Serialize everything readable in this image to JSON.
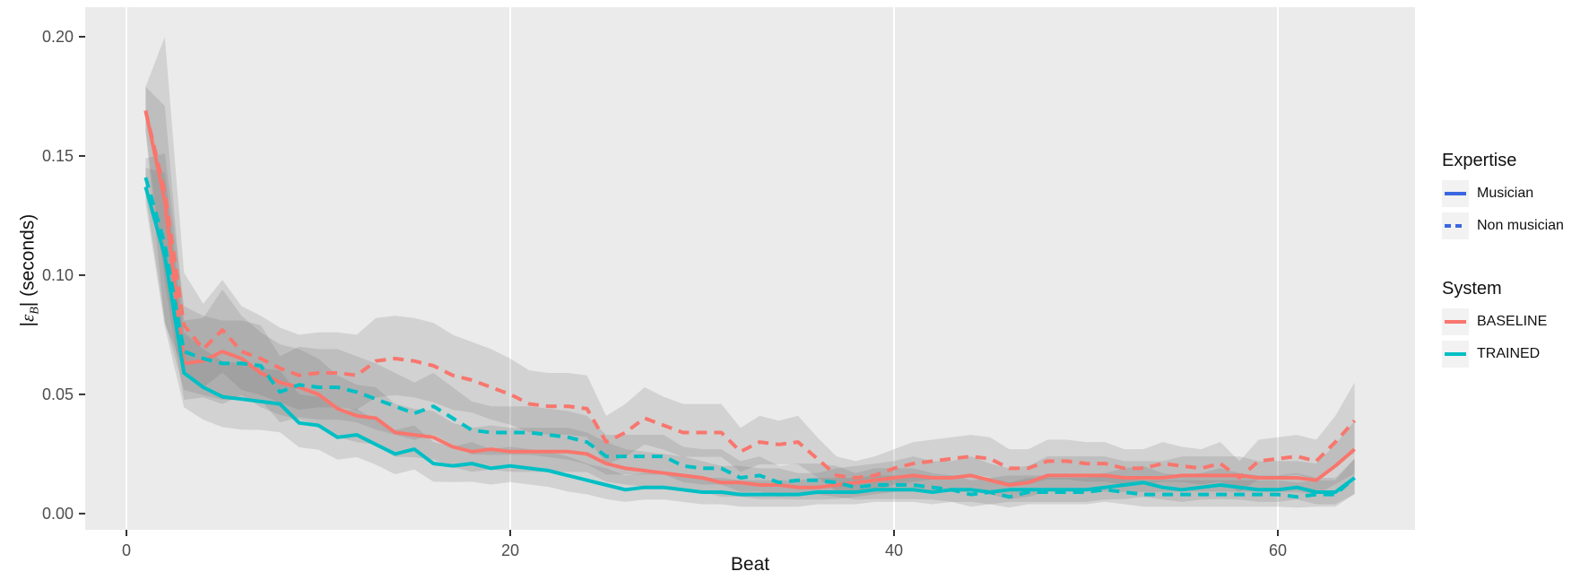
{
  "colors": {
    "panel_bg": "#EBEBEB",
    "grid": "#FFFFFF",
    "ribbon": "rgba(105,105,105,0.19)",
    "baseline": "#F8766D",
    "trained": "#00BFC4",
    "expertise_blue": "#3A66E0",
    "tick_text": "#4D4D4D",
    "tick_mark": "#333333",
    "text": "#111111",
    "legend_key_bg": "#F2F2F2"
  },
  "y_axis": {
    "bar_open": "|",
    "epsilon": "ε",
    "subscript": "B",
    "bar_close": "|",
    "units": " (seconds)"
  },
  "x_axis": {
    "title": "Beat"
  },
  "legend": {
    "groups": [
      {
        "title": "Expertise",
        "items": [
          {
            "label": "Musician",
            "dash": "solid",
            "color_ref": "expertise_blue"
          },
          {
            "label": "Non musician",
            "dash": "dashed",
            "color_ref": "expertise_blue"
          }
        ]
      },
      {
        "title": "System",
        "items": [
          {
            "label": "BASELINE",
            "dash": "solid",
            "color_ref": "baseline"
          },
          {
            "label": "TRAINED",
            "dash": "solid",
            "color_ref": "trained"
          }
        ]
      }
    ]
  },
  "chart_data": {
    "type": "line",
    "title": "",
    "xlabel": "Beat",
    "ylabel": "|εB| (seconds)",
    "legend_position": "right",
    "grid": "vertical-major-only",
    "x_ticks": [
      0,
      20,
      40,
      60
    ],
    "y_ticks": [
      0.0,
      0.05,
      0.1,
      0.15,
      0.2
    ],
    "y_tick_labels": [
      "0.00",
      "0.05",
      "0.10",
      "0.15",
      "0.20"
    ],
    "xlim": [
      -2.15,
      67.15
    ],
    "ylim": [
      -0.0068,
      0.2124
    ],
    "x": [
      1,
      2,
      3,
      4,
      5,
      6,
      7,
      8,
      9,
      10,
      11,
      12,
      13,
      14,
      15,
      16,
      17,
      18,
      19,
      20,
      21,
      22,
      23,
      24,
      25,
      26,
      27,
      28,
      29,
      30,
      31,
      32,
      33,
      34,
      35,
      36,
      37,
      38,
      39,
      40,
      41,
      42,
      43,
      44,
      45,
      46,
      47,
      48,
      49,
      50,
      51,
      52,
      53,
      54,
      55,
      56,
      57,
      58,
      59,
      60,
      61,
      62,
      63,
      64
    ],
    "series": [
      {
        "name": "BASELINE Musician",
        "system": "BASELINE",
        "expertise": "Musician",
        "color": "#F8766D",
        "dash": "solid",
        "values": [
          0.169,
          0.131,
          0.063,
          0.064,
          0.068,
          0.065,
          0.059,
          0.055,
          0.053,
          0.05,
          0.044,
          0.041,
          0.04,
          0.034,
          0.033,
          0.032,
          0.028,
          0.026,
          0.027,
          0.026,
          0.026,
          0.026,
          0.026,
          0.025,
          0.021,
          0.019,
          0.018,
          0.017,
          0.016,
          0.015,
          0.013,
          0.013,
          0.012,
          0.012,
          0.011,
          0.011,
          0.012,
          0.013,
          0.014,
          0.015,
          0.016,
          0.015,
          0.015,
          0.016,
          0.014,
          0.012,
          0.013,
          0.016,
          0.016,
          0.016,
          0.016,
          0.015,
          0.015,
          0.015,
          0.016,
          0.016,
          0.016,
          0.016,
          0.015,
          0.015,
          0.015,
          0.014,
          0.02,
          0.027
        ],
        "spread": [
          0.01,
          0.04,
          0.018,
          0.018,
          0.026,
          0.018,
          0.017,
          0.016,
          0.016,
          0.015,
          0.014,
          0.013,
          0.013,
          0.012,
          0.011,
          0.011,
          0.01,
          0.01,
          0.01,
          0.01,
          0.01,
          0.01,
          0.01,
          0.009,
          0.009,
          0.008,
          0.008,
          0.008,
          0.008,
          0.007,
          0.007,
          0.007,
          0.007,
          0.007,
          0.006,
          0.006,
          0.007,
          0.007,
          0.007,
          0.007,
          0.008,
          0.007,
          0.007,
          0.008,
          0.007,
          0.007,
          0.007,
          0.008,
          0.008,
          0.008,
          0.008,
          0.007,
          0.007,
          0.007,
          0.008,
          0.008,
          0.008,
          0.008,
          0.007,
          0.007,
          0.007,
          0.007,
          0.009,
          0.012
        ]
      },
      {
        "name": "BASELINE Non musician",
        "system": "BASELINE",
        "expertise": "Non musician",
        "color": "#F8766D",
        "dash": "dashed",
        "values": [
          0.169,
          0.135,
          0.079,
          0.069,
          0.077,
          0.068,
          0.065,
          0.061,
          0.058,
          0.059,
          0.059,
          0.058,
          0.064,
          0.065,
          0.064,
          0.062,
          0.058,
          0.056,
          0.053,
          0.05,
          0.046,
          0.045,
          0.045,
          0.044,
          0.03,
          0.034,
          0.04,
          0.037,
          0.034,
          0.034,
          0.034,
          0.026,
          0.03,
          0.029,
          0.03,
          0.023,
          0.016,
          0.015,
          0.016,
          0.019,
          0.021,
          0.022,
          0.023,
          0.024,
          0.023,
          0.019,
          0.019,
          0.022,
          0.022,
          0.021,
          0.021,
          0.019,
          0.019,
          0.021,
          0.02,
          0.019,
          0.021,
          0.015,
          0.022,
          0.023,
          0.024,
          0.022,
          0.03,
          0.039
        ],
        "spread": [
          0.01,
          0.065,
          0.022,
          0.019,
          0.021,
          0.019,
          0.018,
          0.017,
          0.017,
          0.017,
          0.017,
          0.017,
          0.018,
          0.018,
          0.018,
          0.018,
          0.017,
          0.016,
          0.016,
          0.015,
          0.014,
          0.014,
          0.014,
          0.014,
          0.011,
          0.012,
          0.013,
          0.012,
          0.012,
          0.012,
          0.012,
          0.01,
          0.011,
          0.01,
          0.011,
          0.009,
          0.008,
          0.007,
          0.008,
          0.008,
          0.009,
          0.009,
          0.009,
          0.009,
          0.009,
          0.008,
          0.008,
          0.009,
          0.009,
          0.009,
          0.009,
          0.008,
          0.008,
          0.009,
          0.008,
          0.008,
          0.009,
          0.007,
          0.009,
          0.009,
          0.009,
          0.009,
          0.011,
          0.016
        ]
      },
      {
        "name": "TRAINED Musician",
        "system": "TRAINED",
        "expertise": "Musician",
        "color": "#00BFC4",
        "dash": "solid",
        "values": [
          0.137,
          0.108,
          0.059,
          0.053,
          0.049,
          0.048,
          0.047,
          0.046,
          0.038,
          0.037,
          0.032,
          0.033,
          0.029,
          0.025,
          0.027,
          0.021,
          0.02,
          0.021,
          0.019,
          0.02,
          0.019,
          0.018,
          0.016,
          0.014,
          0.012,
          0.01,
          0.011,
          0.011,
          0.01,
          0.009,
          0.009,
          0.008,
          0.008,
          0.008,
          0.008,
          0.009,
          0.009,
          0.009,
          0.01,
          0.01,
          0.01,
          0.009,
          0.01,
          0.01,
          0.009,
          0.01,
          0.01,
          0.01,
          0.01,
          0.01,
          0.011,
          0.012,
          0.013,
          0.011,
          0.01,
          0.011,
          0.012,
          0.011,
          0.01,
          0.01,
          0.011,
          0.009,
          0.009,
          0.015
        ],
        "spread": [
          0.008,
          0.035,
          0.017,
          0.016,
          0.015,
          0.015,
          0.014,
          0.014,
          0.012,
          0.012,
          0.011,
          0.011,
          0.01,
          0.01,
          0.01,
          0.009,
          0.008,
          0.009,
          0.008,
          0.008,
          0.008,
          0.008,
          0.008,
          0.007,
          0.007,
          0.006,
          0.006,
          0.006,
          0.006,
          0.006,
          0.006,
          0.006,
          0.006,
          0.006,
          0.006,
          0.006,
          0.006,
          0.006,
          0.006,
          0.006,
          0.006,
          0.006,
          0.006,
          0.006,
          0.006,
          0.006,
          0.006,
          0.006,
          0.006,
          0.006,
          0.006,
          0.007,
          0.007,
          0.006,
          0.006,
          0.006,
          0.007,
          0.006,
          0.006,
          0.006,
          0.006,
          0.006,
          0.006,
          0.008
        ]
      },
      {
        "name": "TRAINED Non musician",
        "system": "TRAINED",
        "expertise": "Non musician",
        "color": "#00BFC4",
        "dash": "dashed",
        "values": [
          0.141,
          0.113,
          0.068,
          0.065,
          0.063,
          0.063,
          0.062,
          0.051,
          0.054,
          0.053,
          0.053,
          0.051,
          0.048,
          0.045,
          0.042,
          0.045,
          0.04,
          0.035,
          0.034,
          0.034,
          0.034,
          0.033,
          0.032,
          0.03,
          0.024,
          0.024,
          0.024,
          0.024,
          0.02,
          0.019,
          0.019,
          0.015,
          0.016,
          0.013,
          0.014,
          0.014,
          0.013,
          0.011,
          0.012,
          0.012,
          0.012,
          0.011,
          0.01,
          0.008,
          0.009,
          0.007,
          0.009,
          0.009,
          0.009,
          0.009,
          0.01,
          0.009,
          0.008,
          0.008,
          0.008,
          0.008,
          0.008,
          0.008,
          0.008,
          0.008,
          0.007,
          0.008,
          0.008,
          0.015
        ],
        "spread": [
          0.008,
          0.038,
          0.019,
          0.018,
          0.018,
          0.018,
          0.017,
          0.015,
          0.016,
          0.016,
          0.016,
          0.015,
          0.015,
          0.014,
          0.013,
          0.014,
          0.013,
          0.012,
          0.011,
          0.011,
          0.011,
          0.011,
          0.011,
          0.011,
          0.009,
          0.009,
          0.009,
          0.009,
          0.008,
          0.008,
          0.008,
          0.007,
          0.008,
          0.007,
          0.007,
          0.007,
          0.007,
          0.006,
          0.007,
          0.007,
          0.007,
          0.006,
          0.006,
          0.006,
          0.006,
          0.006,
          0.006,
          0.006,
          0.006,
          0.006,
          0.006,
          0.006,
          0.006,
          0.006,
          0.006,
          0.006,
          0.006,
          0.006,
          0.006,
          0.006,
          0.006,
          0.006,
          0.006,
          0.008
        ]
      }
    ]
  }
}
